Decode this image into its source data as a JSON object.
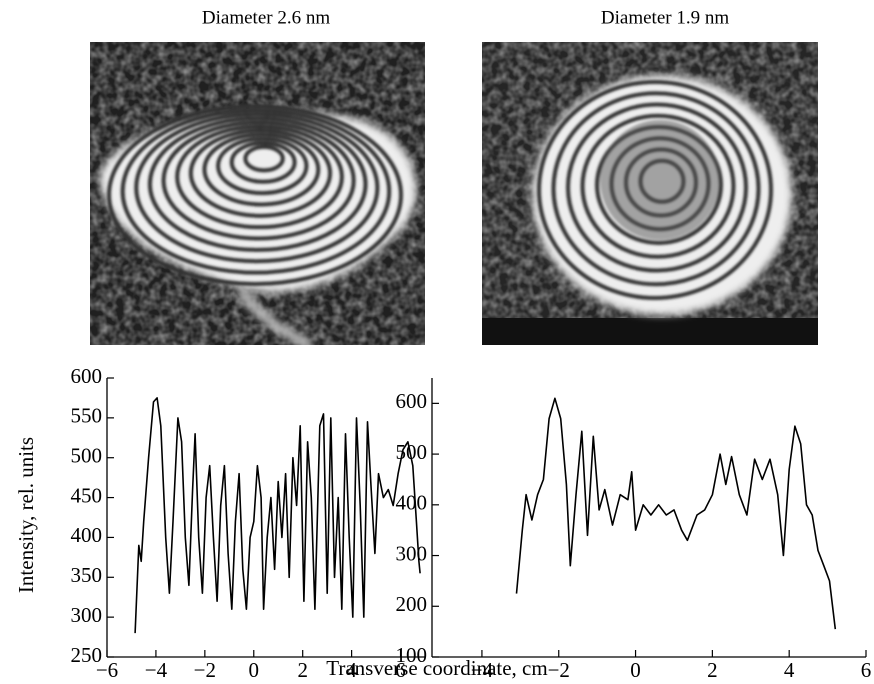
{
  "images": [
    {
      "title": "Diameter 2.6 nm"
    },
    {
      "title": "Diameter 1.9 nm"
    }
  ],
  "xlabel": "Transverse coordinate, cm",
  "ylabel": "Intensity, rel. units",
  "chart_data": [
    {
      "type": "line",
      "color": "#000000",
      "x": [
        -4.85,
        -4.7,
        -4.6,
        -4.5,
        -4.3,
        -4.1,
        -3.95,
        -3.8,
        -3.6,
        -3.45,
        -3.3,
        -3.1,
        -2.95,
        -2.8,
        -2.65,
        -2.5,
        -2.4,
        -2.25,
        -2.1,
        -1.95,
        -1.8,
        -1.65,
        -1.5,
        -1.35,
        -1.2,
        -1.05,
        -0.9,
        -0.75,
        -0.6,
        -0.45,
        -0.3,
        -0.15,
        0,
        0.15,
        0.3,
        0.4,
        0.55,
        0.7,
        0.85,
        1.0,
        1.15,
        1.3,
        1.45,
        1.6,
        1.75,
        1.9,
        2.05,
        2.2,
        2.35,
        2.5,
        2.7,
        2.85,
        3.0,
        3.15,
        3.3,
        3.45,
        3.6,
        3.75,
        3.9,
        4.05,
        4.2,
        4.35,
        4.5,
        4.65,
        4.8,
        4.95,
        5.1,
        5.3,
        5.5,
        5.7,
        5.9,
        6.1,
        6.3,
        6.5,
        6.65,
        6.75,
        6.8
      ],
      "values": [
        280,
        390,
        370,
        420,
        500,
        570,
        575,
        540,
        400,
        330,
        420,
        550,
        520,
        400,
        340,
        460,
        530,
        400,
        330,
        450,
        490,
        400,
        320,
        440,
        490,
        380,
        310,
        420,
        480,
        360,
        310,
        400,
        420,
        490,
        450,
        310,
        400,
        450,
        360,
        470,
        400,
        480,
        350,
        500,
        440,
        540,
        320,
        520,
        450,
        310,
        540,
        555,
        330,
        550,
        350,
        450,
        310,
        530,
        400,
        300,
        550,
        440,
        300,
        545,
        460,
        380,
        480,
        450,
        460,
        440,
        480,
        510,
        520,
        490,
        420,
        370,
        355
      ],
      "xlim": [
        -6,
        7
      ],
      "xticks": [
        {
          "value": -6,
          "label": "−6"
        },
        {
          "value": -4,
          "label": "−4"
        },
        {
          "value": -2,
          "label": "−2"
        },
        0,
        2,
        4,
        6
      ],
      "ylim": [
        250,
        600
      ],
      "yticks": [
        250,
        300,
        350,
        400,
        450,
        500,
        550,
        600
      ]
    },
    {
      "type": "line",
      "color": "#000000",
      "x": [
        -3.1,
        -2.95,
        -2.85,
        -2.7,
        -2.55,
        -2.4,
        -2.25,
        -2.1,
        -1.95,
        -1.8,
        -1.7,
        -1.55,
        -1.4,
        -1.25,
        -1.1,
        -0.95,
        -0.8,
        -0.6,
        -0.4,
        -0.2,
        -0.1,
        0,
        0.2,
        0.4,
        0.6,
        0.8,
        1.0,
        1.2,
        1.35,
        1.6,
        1.8,
        2.0,
        2.2,
        2.35,
        2.5,
        2.7,
        2.9,
        3.1,
        3.3,
        3.5,
        3.7,
        3.85,
        4.0,
        4.15,
        4.3,
        4.45,
        4.6,
        4.75,
        4.9,
        5.05,
        5.2
      ],
      "values": [
        225,
        350,
        420,
        370,
        420,
        450,
        570,
        610,
        570,
        440,
        280,
        420,
        545,
        340,
        535,
        390,
        430,
        360,
        420,
        410,
        465,
        350,
        400,
        380,
        400,
        380,
        390,
        350,
        330,
        380,
        390,
        420,
        500,
        440,
        495,
        420,
        380,
        490,
        450,
        490,
        420,
        300,
        470,
        555,
        520,
        400,
        380,
        310,
        280,
        250,
        155
      ],
      "xlim": [
        -5.3,
        6
      ],
      "xticks": [
        {
          "value": -4,
          "label": "−4"
        },
        {
          "value": -2,
          "label": "−2"
        },
        0,
        2,
        4,
        6
      ],
      "ylim": [
        100,
        650
      ],
      "yticks": [
        100,
        200,
        300,
        400,
        500,
        600
      ]
    }
  ]
}
